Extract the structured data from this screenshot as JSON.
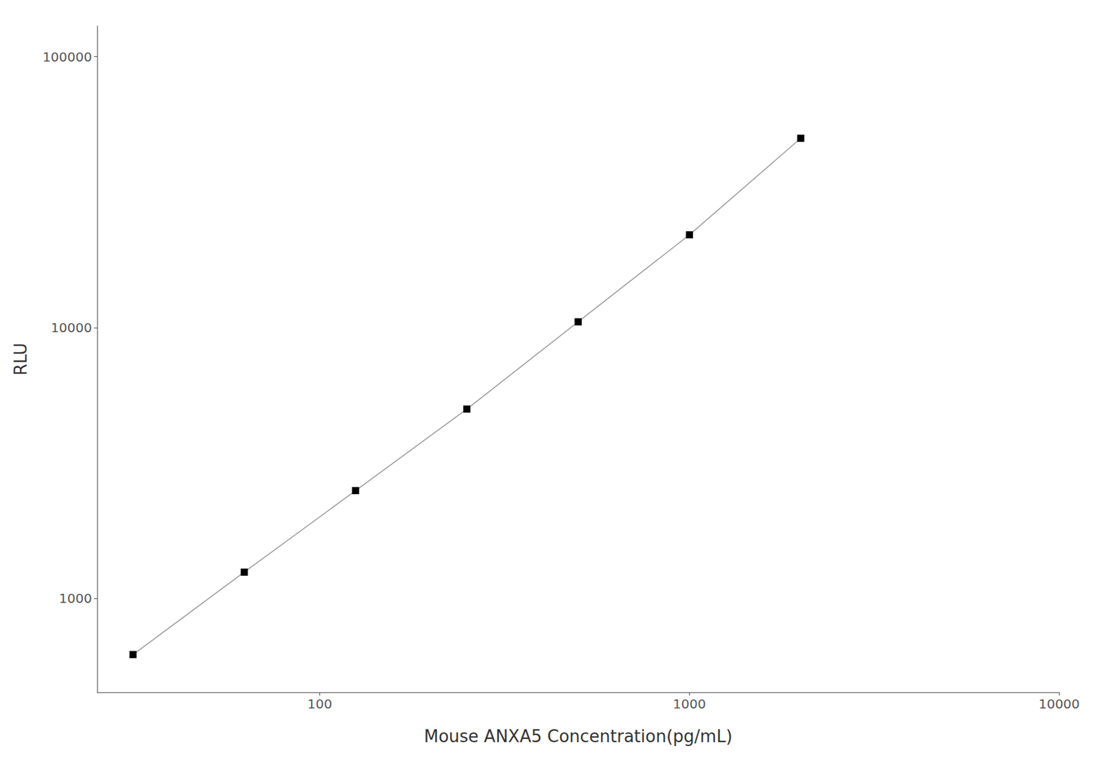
{
  "chart_data": {
    "type": "line",
    "x": [
      31.25,
      62.5,
      125,
      250,
      500,
      1000,
      2000
    ],
    "values": [
      620,
      1250,
      2500,
      5000,
      10500,
      22000,
      50000
    ],
    "xlabel": "Mouse ANXA5 Concentration(pg/mL)",
    "ylabel": "RLU",
    "xlim": [
      25,
      10000
    ],
    "ylim": [
      450,
      130000
    ],
    "xticks": [
      100,
      1000,
      10000
    ],
    "yticks": [
      1000,
      10000,
      100000
    ],
    "log": true,
    "grid": false,
    "color": "#999999",
    "colors": [
      "#000000",
      "#000000",
      "#000000",
      "#000000",
      "#000000",
      "#000000",
      "#000000"
    ],
    "marker": "square"
  }
}
